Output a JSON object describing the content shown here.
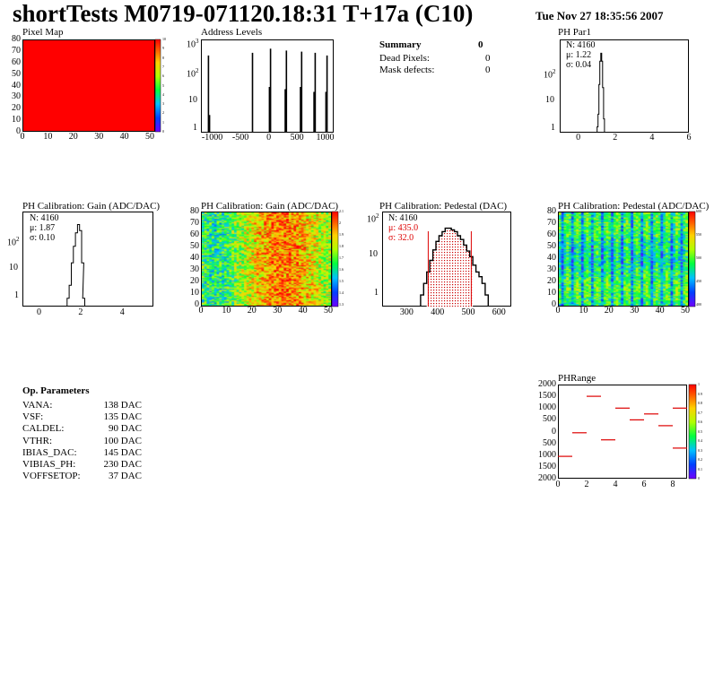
{
  "header": {
    "title": "shortTests M0719-071120.18:31 T+17a (C10)",
    "date": "Tue Nov 27 18:35:56 2007"
  },
  "summary": {
    "heading": "Summary",
    "heading_value": "0",
    "rows": [
      {
        "label": "Dead Pixels:",
        "value": "0"
      },
      {
        "label": "Mask defects:",
        "value": "0"
      }
    ]
  },
  "op_params": {
    "heading": "Op. Parameters",
    "rows": [
      {
        "name": "VANA:",
        "value": "138 DAC"
      },
      {
        "name": "VSF:",
        "value": "135 DAC"
      },
      {
        "name": "CALDEL:",
        "value": "90 DAC"
      },
      {
        "name": "VTHR:",
        "value": "100 DAC"
      },
      {
        "name": "IBIAS_DAC:",
        "value": "145 DAC"
      },
      {
        "name": "VIBIAS_PH:",
        "value": "230 DAC"
      },
      {
        "name": "VOFFSETOP:",
        "value": "37 DAC"
      }
    ]
  },
  "chart_data": [
    {
      "id": "pixel_map",
      "type": "heatmap",
      "title": "Pixel Map",
      "x_ticks": [
        "0",
        "10",
        "20",
        "30",
        "40",
        "50"
      ],
      "y_ticks": [
        "80",
        "70",
        "60",
        "50",
        "40",
        "30",
        "20",
        "10",
        "0"
      ],
      "xlim": [
        0,
        52
      ],
      "ylim": [
        0,
        80
      ],
      "fill_color": "#ff0000",
      "colorbar_ticks": [
        "10",
        "9",
        "8",
        "7",
        "6",
        "5",
        "4",
        "3",
        "2",
        "1",
        "0"
      ],
      "zlim": [
        0,
        10
      ]
    },
    {
      "id": "address_levels",
      "type": "bar",
      "title": "Address Levels",
      "log_y": true,
      "x_ticks": [
        "-1000",
        "-500",
        "0",
        "500",
        "1000"
      ],
      "y_ticks": [
        "10",
        "1"
      ],
      "y_top_label": "10",
      "y_top_exp": "3",
      "y_mid_label": "10",
      "y_mid_exp": "2",
      "xlim": [
        -1200,
        1150
      ],
      "peaks": [
        {
          "x": -1080,
          "y": 400
        },
        {
          "x": -1060,
          "y": 3
        },
        {
          "x": -300,
          "y": 500
        },
        {
          "x": 0,
          "y": 30
        },
        {
          "x": 20,
          "y": 700
        },
        {
          "x": 280,
          "y": 25
        },
        {
          "x": 300,
          "y": 600
        },
        {
          "x": 550,
          "y": 30
        },
        {
          "x": 570,
          "y": 550
        },
        {
          "x": 790,
          "y": 20
        },
        {
          "x": 810,
          "y": 500
        },
        {
          "x": 1000,
          "y": 20
        },
        {
          "x": 1020,
          "y": 400
        }
      ]
    },
    {
      "id": "ph_par1",
      "type": "bar",
      "title": "PH Par1",
      "log_y": true,
      "x_ticks": [
        "0",
        "2",
        "4",
        "6"
      ],
      "y_ticks": [
        "10",
        "1"
      ],
      "y_top_label": "10",
      "y_top_exp": "2",
      "xlim": [
        -1,
        6
      ],
      "ylim_log": [
        0.6,
        2000
      ],
      "stats": {
        "n": "N: 4160",
        "mu": "μ: 1.22",
        "sigma": "σ: 0.04"
      },
      "bins": [
        {
          "x": 1.05,
          "y": 1
        },
        {
          "x": 1.1,
          "y": 3
        },
        {
          "x": 1.15,
          "y": 40
        },
        {
          "x": 1.2,
          "y": 300
        },
        {
          "x": 1.25,
          "y": 600
        },
        {
          "x": 1.3,
          "y": 300
        },
        {
          "x": 1.35,
          "y": 30
        },
        {
          "x": 1.4,
          "y": 2
        }
      ]
    },
    {
      "id": "gain_hist",
      "type": "bar",
      "title": "PH Calibration: Gain (ADC/DAC)",
      "log_y": true,
      "x_ticks": [
        "0",
        "2",
        "4"
      ],
      "y_ticks": [
        "10",
        "1"
      ],
      "y_top_label": "10",
      "y_top_exp": "2",
      "xlim": [
        -0.8,
        5.5
      ],
      "ylim_log": [
        0.5,
        1500
      ],
      "stats": {
        "n": "N: 4160",
        "mu": "μ: 1.87",
        "sigma": "σ: 0.10"
      },
      "bins": [
        {
          "x": 1.4,
          "y": 1
        },
        {
          "x": 1.5,
          "y": 3
        },
        {
          "x": 1.6,
          "y": 20
        },
        {
          "x": 1.7,
          "y": 80
        },
        {
          "x": 1.8,
          "y": 250
        },
        {
          "x": 1.9,
          "y": 500
        },
        {
          "x": 2.0,
          "y": 300
        },
        {
          "x": 2.1,
          "y": 20
        },
        {
          "x": 2.15,
          "y": 1
        }
      ]
    },
    {
      "id": "gain_map",
      "type": "heatmap",
      "title": "PH Calibration: Gain (ADC/DAC)",
      "x_ticks": [
        "0",
        "10",
        "20",
        "30",
        "40",
        "50"
      ],
      "y_ticks": [
        "80",
        "70",
        "60",
        "50",
        "40",
        "30",
        "20",
        "10",
        "0"
      ],
      "colorbar_ticks": [
        "2.1",
        "2",
        "1.9",
        "1.8",
        "1.7",
        "1.6",
        "1.5",
        "1.4",
        "1.3"
      ],
      "zlim": [
        1.3,
        2.1
      ]
    },
    {
      "id": "pedestal_hist",
      "type": "bar",
      "title": "PH Calibration: Pedestal (DAC)",
      "log_y": true,
      "x_ticks": [
        "300",
        "400",
        "500",
        "600"
      ],
      "y_ticks": [
        "10",
        "1"
      ],
      "y_top_label": "10",
      "y_top_exp": "2",
      "xlim": [
        220,
        640
      ],
      "ylim_log": [
        0.5,
        150
      ],
      "stats": {
        "n": "N: 4160",
        "mu": "μ: 435.0",
        "sigma": "σ: 32.0"
      },
      "fit_range": [
        370,
        510
      ],
      "bins": [
        {
          "x": 350,
          "y": 1
        },
        {
          "x": 360,
          "y": 2
        },
        {
          "x": 370,
          "y": 4
        },
        {
          "x": 380,
          "y": 8
        },
        {
          "x": 390,
          "y": 15
        },
        {
          "x": 400,
          "y": 25
        },
        {
          "x": 410,
          "y": 35
        },
        {
          "x": 420,
          "y": 45
        },
        {
          "x": 430,
          "y": 55
        },
        {
          "x": 440,
          "y": 55
        },
        {
          "x": 450,
          "y": 50
        },
        {
          "x": 460,
          "y": 45
        },
        {
          "x": 470,
          "y": 35
        },
        {
          "x": 480,
          "y": 28
        },
        {
          "x": 490,
          "y": 20
        },
        {
          "x": 500,
          "y": 14
        },
        {
          "x": 510,
          "y": 10
        },
        {
          "x": 520,
          "y": 6
        },
        {
          "x": 530,
          "y": 4
        },
        {
          "x": 540,
          "y": 3
        },
        {
          "x": 550,
          "y": 2
        },
        {
          "x": 560,
          "y": 1
        }
      ]
    },
    {
      "id": "pedestal_map",
      "type": "heatmap",
      "title": "PH Calibration: Pedestal (ADC/DAC)",
      "x_ticks": [
        "0",
        "10",
        "20",
        "30",
        "40",
        "50"
      ],
      "y_ticks": [
        "80",
        "70",
        "60",
        "50",
        "40",
        "30",
        "20",
        "10",
        "0"
      ],
      "colorbar_ticks": [
        "600",
        "550",
        "500",
        "450",
        "400"
      ],
      "zlim": [
        380,
        620
      ]
    },
    {
      "id": "ph_range",
      "type": "scatter",
      "title": "PHRange",
      "x_ticks": [
        "0",
        "2",
        "4",
        "6",
        "8"
      ],
      "y_ticks": [
        "2000",
        "1500",
        "1000",
        "500",
        "0",
        "-500",
        "-1000",
        "-1500",
        "-2000"
      ],
      "y_tick_labels": [
        "2000",
        "1500",
        "1000",
        "500",
        "0",
        "500",
        "1000",
        "1500",
        "2000"
      ],
      "xlim": [
        0,
        9
      ],
      "ylim": [
        -2000,
        2000
      ],
      "colorbar_ticks": [
        "1",
        "0.9",
        "0.8",
        "0.7",
        "0.6",
        "0.5",
        "0.4",
        "0.3",
        "0.2",
        "0.1",
        "0"
      ],
      "segments": [
        {
          "x": 0.5,
          "y": -1050
        },
        {
          "x": 1.5,
          "y": -50
        },
        {
          "x": 2.5,
          "y": 1500
        },
        {
          "x": 3.5,
          "y": -350
        },
        {
          "x": 4.5,
          "y": 1000
        },
        {
          "x": 5.5,
          "y": 500
        },
        {
          "x": 6.5,
          "y": 750
        },
        {
          "x": 7.5,
          "y": 250
        },
        {
          "x": 8.5,
          "y": 1000
        },
        {
          "x": 8.5,
          "y": -700
        }
      ]
    }
  ]
}
